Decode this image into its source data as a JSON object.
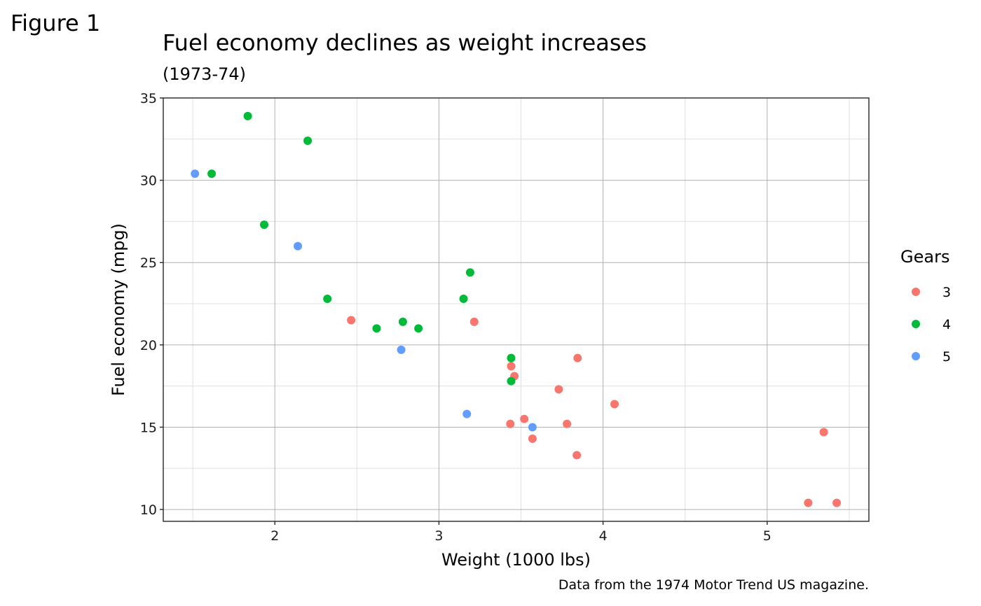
{
  "figure_label": "Figure 1",
  "chart_data": {
    "type": "scatter",
    "title": "Fuel economy declines as weight increases",
    "subtitle": "(1973-74)",
    "caption": "Data from the 1974 Motor Trend US magazine.",
    "xlabel": "Weight (1000 lbs)",
    "ylabel": "Fuel economy (mpg)",
    "xlim": [
      1.32,
      5.62
    ],
    "ylim": [
      9.28,
      35
    ],
    "xticks": [
      2,
      3,
      4,
      5
    ],
    "yticks": [
      10,
      15,
      20,
      25,
      30,
      35
    ],
    "x_minor": [
      1.5,
      2.5,
      3.5,
      4.5,
      5.5
    ],
    "y_minor": [
      12.5,
      17.5,
      22.5,
      27.5,
      32.5
    ],
    "grid": true,
    "legend": {
      "title": "Gears",
      "position": "right",
      "entries": [
        {
          "label": "3",
          "color": "#F8766D"
        },
        {
          "label": "4",
          "color": "#00BA38"
        },
        {
          "label": "5",
          "color": "#619CFF"
        }
      ]
    },
    "series": [
      {
        "name": "3",
        "color": "#F8766D",
        "points": [
          {
            "x": 3.215,
            "y": 21.4
          },
          {
            "x": 3.44,
            "y": 18.7
          },
          {
            "x": 3.46,
            "y": 18.1
          },
          {
            "x": 3.57,
            "y": 14.3
          },
          {
            "x": 4.07,
            "y": 16.4
          },
          {
            "x": 3.73,
            "y": 17.3
          },
          {
            "x": 3.78,
            "y": 15.2
          },
          {
            "x": 5.25,
            "y": 10.4
          },
          {
            "x": 5.424,
            "y": 10.4
          },
          {
            "x": 5.345,
            "y": 14.7
          },
          {
            "x": 2.465,
            "y": 21.5
          },
          {
            "x": 3.52,
            "y": 15.5
          },
          {
            "x": 3.435,
            "y": 15.2
          },
          {
            "x": 3.84,
            "y": 13.3
          },
          {
            "x": 3.845,
            "y": 19.2
          }
        ]
      },
      {
        "name": "4",
        "color": "#00BA38",
        "points": [
          {
            "x": 2.62,
            "y": 21.0
          },
          {
            "x": 2.875,
            "y": 21.0
          },
          {
            "x": 2.32,
            "y": 22.8
          },
          {
            "x": 3.19,
            "y": 24.4
          },
          {
            "x": 3.15,
            "y": 22.8
          },
          {
            "x": 3.44,
            "y": 19.2
          },
          {
            "x": 3.44,
            "y": 17.8
          },
          {
            "x": 2.2,
            "y": 32.4
          },
          {
            "x": 1.615,
            "y": 30.4
          },
          {
            "x": 1.835,
            "y": 33.9
          },
          {
            "x": 1.935,
            "y": 27.3
          },
          {
            "x": 2.78,
            "y": 21.4
          }
        ]
      },
      {
        "name": "5",
        "color": "#619CFF",
        "points": [
          {
            "x": 2.14,
            "y": 26.0
          },
          {
            "x": 1.513,
            "y": 30.4
          },
          {
            "x": 3.17,
            "y": 15.8
          },
          {
            "x": 2.77,
            "y": 19.7
          },
          {
            "x": 3.57,
            "y": 15.0
          }
        ]
      }
    ]
  }
}
